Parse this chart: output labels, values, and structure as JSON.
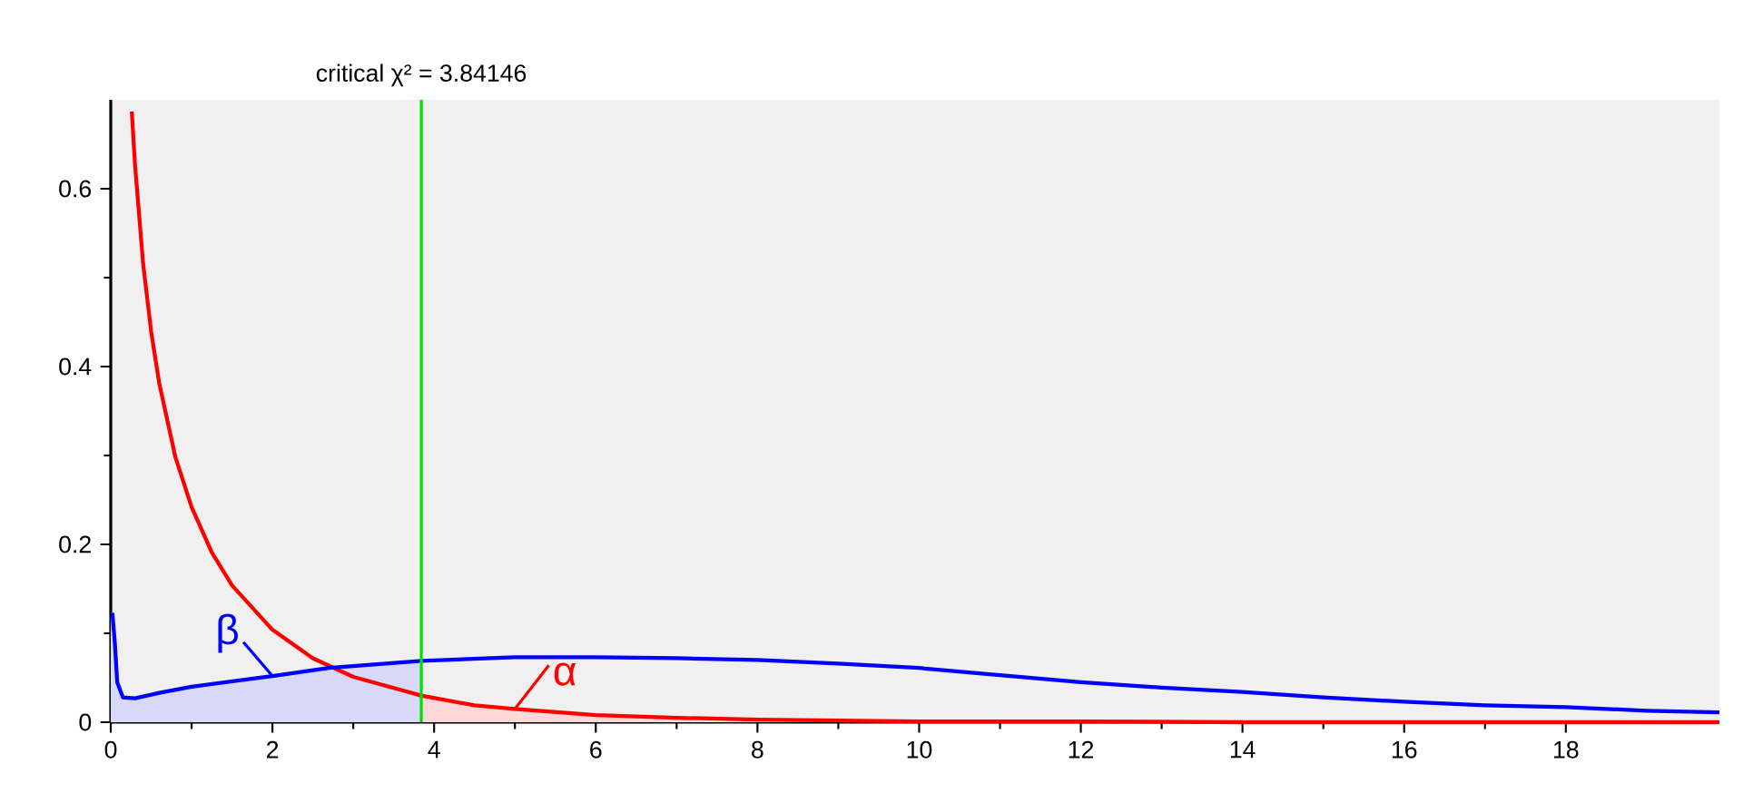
{
  "chart_data": {
    "type": "line",
    "xlim": [
      0,
      19.9
    ],
    "ylim": [
      0,
      0.7
    ],
    "xticks": [
      0,
      2,
      4,
      6,
      8,
      10,
      12,
      14,
      16,
      18
    ],
    "yticks": [
      0,
      0.2,
      0.4,
      0.6
    ],
    "grid": false,
    "series": [
      {
        "color": "#ff0000",
        "x": [
          0.26,
          0.3,
          0.4,
          0.5,
          0.6,
          0.8,
          1,
          1.25,
          1.5,
          2,
          2.5,
          3,
          3.84146,
          4.5,
          5,
          6,
          7,
          8,
          10,
          12,
          14,
          16,
          18,
          19.9
        ],
        "values": [
          0.687,
          0.627,
          0.516,
          0.439,
          0.381,
          0.298,
          0.242,
          0.191,
          0.154,
          0.104,
          0.072,
          0.051,
          0.03,
          0.019,
          0.015,
          0.008,
          0.005,
          0.003,
          0.001,
          0.001,
          0,
          0,
          0,
          0
        ]
      },
      {
        "color": "#0000ff",
        "x": [
          0.02,
          0.05,
          0.08,
          0.15,
          0.3,
          0.6,
          1,
          1.5,
          2,
          2.7,
          3.84146,
          5,
          6,
          7,
          8,
          9,
          10,
          11,
          12,
          13,
          14,
          15,
          16,
          17,
          18,
          19,
          19.9
        ],
        "values": [
          0.123,
          0.09,
          0.045,
          0.028,
          0.027,
          0.033,
          0.04,
          0.046,
          0.052,
          0.061,
          0.069,
          0.073,
          0.073,
          0.072,
          0.07,
          0.066,
          0.061,
          0.053,
          0.045,
          0.039,
          0.034,
          0.028,
          0.023,
          0.019,
          0.017,
          0.013,
          0.011
        ]
      },
      {
        "type": "area",
        "color": "#d8d8fa",
        "x": [
          0,
          0.02,
          0.05,
          0.08,
          0.15,
          0.3,
          0.6,
          1,
          1.5,
          2,
          2.7,
          3.84146
        ],
        "values": [
          0.123,
          0.123,
          0.09,
          0.045,
          0.028,
          0.027,
          0.033,
          0.04,
          0.046,
          0.052,
          0.061,
          0.069
        ]
      },
      {
        "type": "area",
        "color": "#fdd8d8",
        "x": [
          3.84146,
          4.5,
          5,
          6,
          7,
          8,
          10,
          12,
          14,
          16,
          18,
          19.9
        ],
        "values": [
          0.03,
          0.019,
          0.015,
          0.008,
          0.005,
          0.003,
          0.001,
          0.001,
          0,
          0,
          0,
          0
        ]
      }
    ],
    "ref_lines": [
      {
        "axis": "x",
        "value": 3.84146,
        "label": "critical χ² = 3.84146",
        "color": "#00e000"
      }
    ],
    "annotations": [
      {
        "text": "α",
        "x": 5,
        "y": 0.015
      },
      {
        "text": "β",
        "x": 2,
        "y": 0.052
      }
    ]
  }
}
